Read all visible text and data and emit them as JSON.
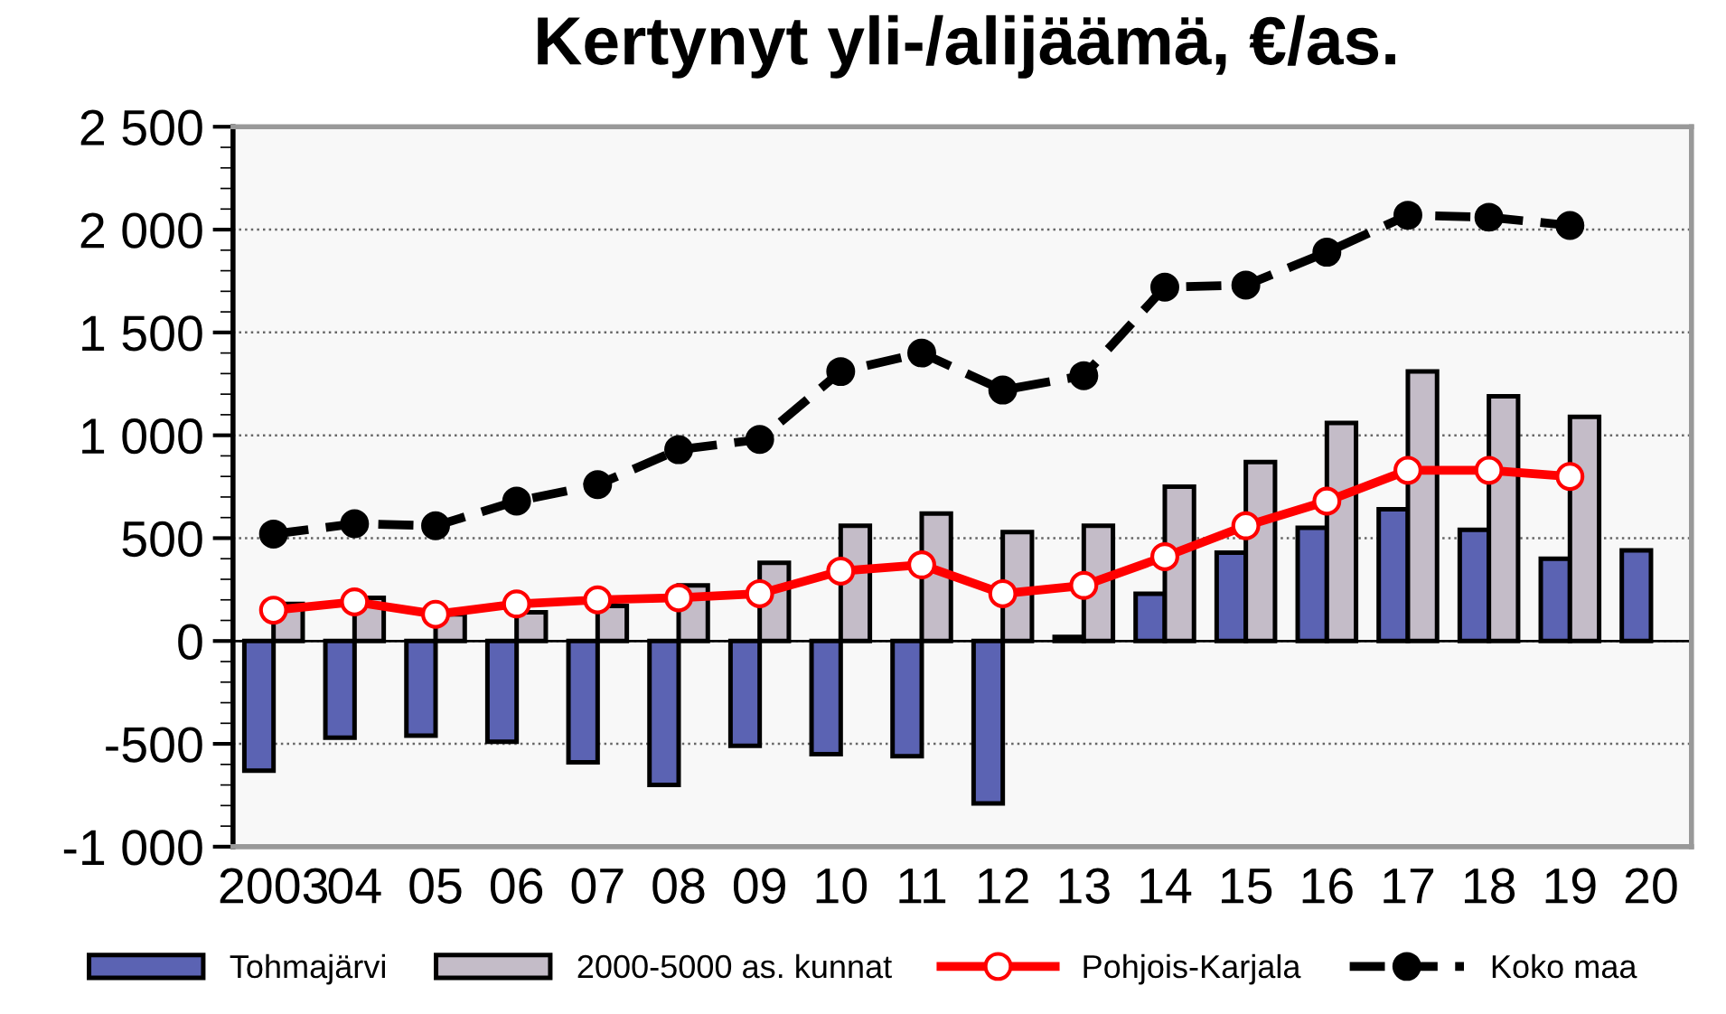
{
  "chart_data": {
    "type": "bar",
    "title": "Kertynyt yli-/alijäämä, €/as.",
    "categories": [
      "2003",
      "04",
      "05",
      "06",
      "07",
      "08",
      "09",
      "10",
      "11",
      "12",
      "13",
      "14",
      "15",
      "16",
      "17",
      "18",
      "19",
      "20"
    ],
    "series": [
      {
        "name": "Tohmajärvi",
        "color": "#5b63b3",
        "values": [
          -630,
          -470,
          -460,
          -490,
          -590,
          -700,
          -510,
          -550,
          -560,
          -790,
          20,
          230,
          430,
          550,
          640,
          540,
          400,
          440
        ]
      },
      {
        "name": "2000-5000 as. kunnat",
        "color": "#c4bcc8",
        "values": [
          180,
          210,
          130,
          140,
          170,
          270,
          380,
          560,
          620,
          530,
          560,
          750,
          870,
          1060,
          1310,
          1190,
          1090,
          null
        ]
      },
      {
        "name": "Pohjois-Karjala",
        "type": "line",
        "color": "#ff0000",
        "marker": "circle",
        "line_style": "solid",
        "values": [
          150,
          190,
          130,
          180,
          200,
          210,
          230,
          340,
          370,
          230,
          270,
          410,
          560,
          680,
          830,
          830,
          800,
          null
        ]
      },
      {
        "name": "Koko maa",
        "type": "line",
        "color": "#000000",
        "marker": "circle",
        "line_style": "dashed",
        "values": [
          520,
          570,
          560,
          680,
          760,
          930,
          980,
          1310,
          1400,
          1220,
          1290,
          1720,
          1730,
          1890,
          2070,
          2060,
          2020,
          null
        ]
      }
    ],
    "ylim": [
      -1000,
      2500
    ],
    "yticks": [
      {
        "value": -1000,
        "label": "-1 000"
      },
      -500,
      0,
      500,
      {
        "value": 1000,
        "label": "1 000"
      },
      {
        "value": 1500,
        "label": "1 500"
      },
      {
        "value": 2000,
        "label": "2 000"
      },
      {
        "value": 2500,
        "label": "2 500"
      }
    ],
    "grid": "y",
    "legend": "bottom"
  }
}
